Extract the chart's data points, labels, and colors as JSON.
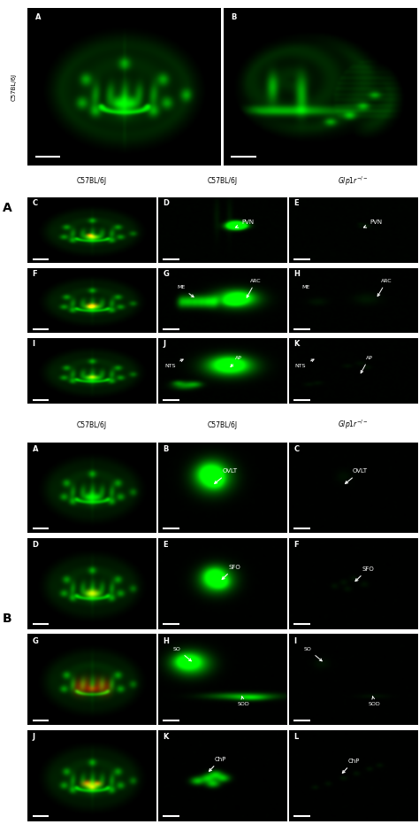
{
  "figure_bg": "#ffffff",
  "sidebar_A_text": "C57BL/6J",
  "section_A_label": "A",
  "section_B_label": "B",
  "col_headers_A": [
    "C57BL/6J",
    "C57BL/6J",
    "Glp1r⁻/⁻"
  ],
  "col_headers_B": [
    "C57BL/6J",
    "C57BL/6J",
    "Glp1r⁻/⁻"
  ],
  "annot_pvn": "PVN",
  "annot_me": "ME",
  "annot_arc": "ARC",
  "annot_nts": "NTS",
  "annot_ap": "AP",
  "annot_ovlt": "OVLT",
  "annot_sfo": "SFO",
  "annot_so": "SO",
  "annot_sod": "SOD",
  "annot_chp": "ChP"
}
